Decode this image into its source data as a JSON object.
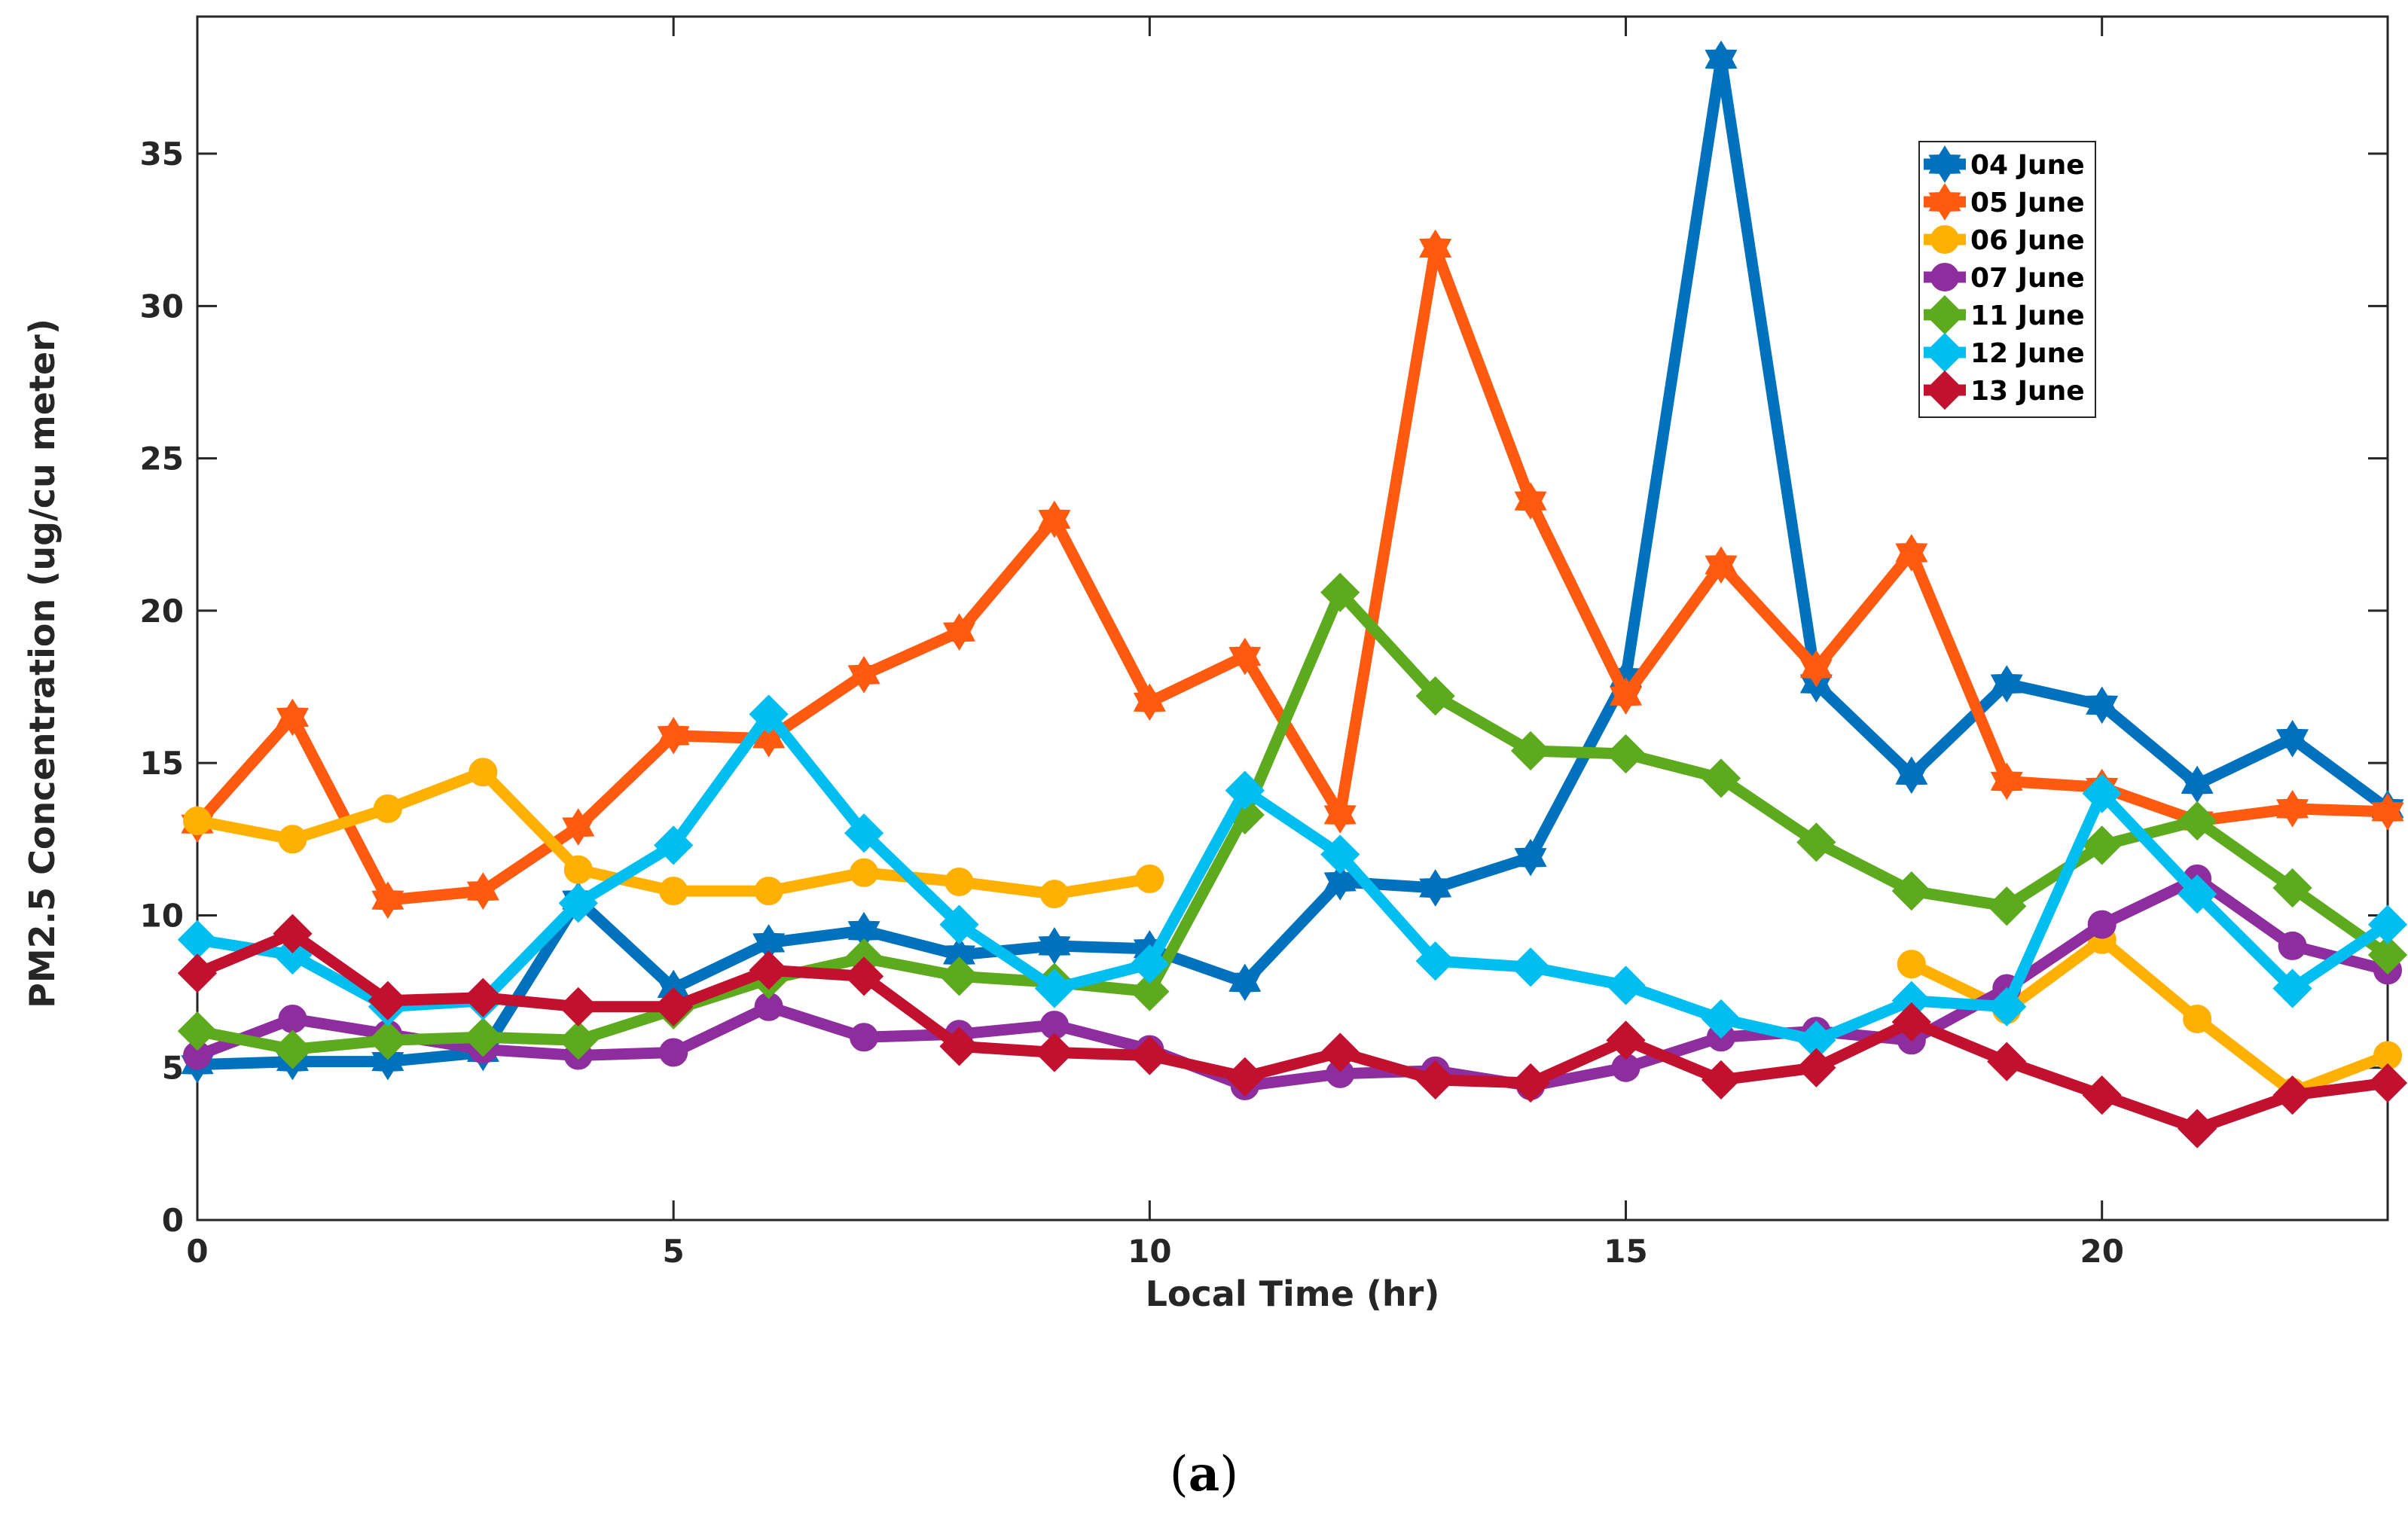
{
  "caption": {
    "open": "(",
    "letter": "a",
    "close": ")"
  },
  "chart_data": {
    "type": "line",
    "title": "",
    "xlabel": "Local Time (hr)",
    "ylabel": "PM2.5 Concentration (ug/cu meter)",
    "xlim": [
      0,
      23
    ],
    "ylim": [
      0,
      39.5
    ],
    "xticks": [
      0,
      5,
      10,
      15,
      20
    ],
    "yticks": [
      0,
      5,
      10,
      15,
      20,
      25,
      30,
      35
    ],
    "grid": false,
    "legend_position": "top-right",
    "series": [
      {
        "name": "04 June",
        "color": "#0072BD",
        "marker": "hexagram",
        "x": [
          0,
          1,
          2,
          3,
          4,
          5,
          6,
          7,
          8,
          9,
          10,
          11,
          12,
          13,
          14,
          15,
          16,
          17,
          18,
          19,
          20,
          21,
          22,
          23
        ],
        "values": [
          5.1,
          5.2,
          5.2,
          5.5,
          10.5,
          7.6,
          9.1,
          9.5,
          8.7,
          9.0,
          8.9,
          7.8,
          11.1,
          10.9,
          11.9,
          17.8,
          38.1,
          17.6,
          14.6,
          17.6,
          16.9,
          14.3,
          15.8,
          13.5
        ]
      },
      {
        "name": "05 June",
        "color": "#FF5A0F",
        "marker": "hexagram",
        "x": [
          0,
          1,
          2,
          3,
          4,
          5,
          6,
          7,
          8,
          9,
          10,
          11,
          12,
          13,
          14,
          15,
          16,
          17,
          18,
          19,
          20,
          21,
          22,
          23
        ],
        "values": [
          13.0,
          16.5,
          10.5,
          10.8,
          12.9,
          15.9,
          15.8,
          17.9,
          19.3,
          23.0,
          17.0,
          18.5,
          13.3,
          31.9,
          23.6,
          17.2,
          21.5,
          18.1,
          21.9,
          14.4,
          14.2,
          13.1,
          13.5,
          13.4
        ]
      },
      {
        "name": "06 June",
        "color": "#FFB000",
        "marker": "circle",
        "x": [
          0,
          1,
          2,
          3,
          4,
          5,
          6,
          7,
          8,
          9,
          10,
          null,
          18,
          19,
          20,
          21,
          22,
          23
        ],
        "values": [
          13.1,
          12.5,
          13.5,
          14.7,
          11.5,
          10.8,
          10.8,
          11.4,
          11.1,
          10.7,
          11.2,
          null,
          8.4,
          6.9,
          9.2,
          6.6,
          4.2,
          5.4
        ]
      },
      {
        "name": "07 June",
        "color": "#8E2E9E",
        "marker": "circle",
        "x": [
          0,
          1,
          2,
          3,
          4,
          5,
          6,
          7,
          8,
          9,
          10,
          11,
          12,
          13,
          14,
          15,
          16,
          17,
          18,
          19,
          20,
          21,
          22,
          23
        ],
        "values": [
          5.4,
          6.6,
          6.1,
          5.6,
          5.4,
          5.5,
          7.0,
          6.0,
          6.1,
          6.4,
          5.6,
          4.4,
          4.8,
          4.9,
          4.4,
          5.0,
          6.0,
          6.2,
          5.9,
          7.6,
          9.7,
          11.2,
          9.0,
          8.2
        ]
      },
      {
        "name": "11 June",
        "color": "#5DAA1E",
        "marker": "diamond",
        "x": [
          0,
          1,
          2,
          3,
          4,
          5,
          6,
          7,
          8,
          9,
          10,
          11,
          12,
          13,
          14,
          15,
          16,
          17,
          18,
          19,
          20,
          21,
          22,
          23
        ],
        "values": [
          6.2,
          5.6,
          5.9,
          6.0,
          5.9,
          6.9,
          7.9,
          8.6,
          8.0,
          7.8,
          7.5,
          13.3,
          20.6,
          17.2,
          15.4,
          15.3,
          14.5,
          12.4,
          10.8,
          10.3,
          12.3,
          13.1,
          10.9,
          8.7
        ]
      },
      {
        "name": "12 June",
        "color": "#00BEF0",
        "marker": "diamond",
        "x": [
          0,
          1,
          2,
          3,
          4,
          5,
          6,
          7,
          8,
          9,
          10,
          11,
          12,
          13,
          14,
          15,
          16,
          17,
          18,
          19,
          20,
          21,
          22,
          23
        ],
        "values": [
          9.2,
          8.7,
          7.0,
          7.2,
          10.4,
          12.3,
          16.6,
          12.7,
          9.7,
          7.6,
          8.4,
          14.1,
          12.0,
          8.5,
          8.3,
          7.7,
          6.6,
          5.9,
          7.2,
          7.0,
          14.0,
          10.7,
          7.6,
          9.7
        ]
      },
      {
        "name": "13 June",
        "color": "#C2102F",
        "marker": "diamond",
        "x": [
          0,
          1,
          2,
          3,
          4,
          5,
          6,
          7,
          8,
          9,
          10,
          11,
          12,
          13,
          14,
          15,
          16,
          17,
          18,
          19,
          20,
          21,
          22,
          23
        ],
        "values": [
          8.1,
          9.4,
          7.2,
          7.3,
          7.0,
          7.0,
          8.2,
          8.0,
          5.7,
          5.5,
          5.4,
          4.7,
          5.5,
          4.6,
          4.5,
          5.9,
          4.6,
          5.0,
          6.5,
          5.2,
          4.1,
          3.0,
          4.1,
          4.5
        ]
      }
    ]
  }
}
